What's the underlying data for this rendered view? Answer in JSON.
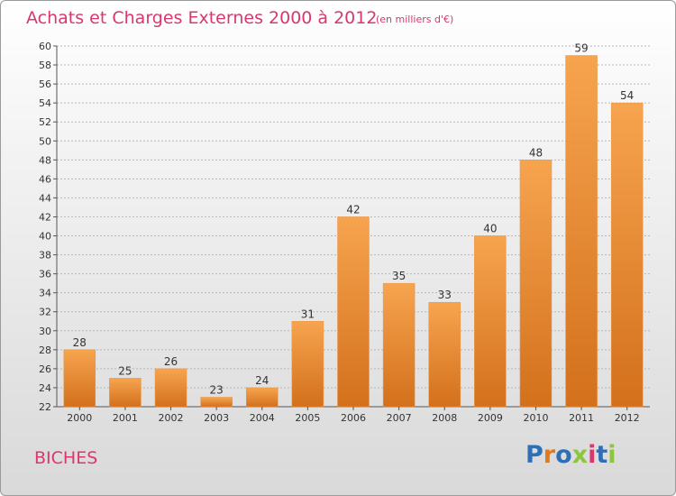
{
  "title": "Achats et Charges Externes 2000 à 2012",
  "subtitle": "(en milliers d'€)",
  "commune": "BICHES",
  "logo": {
    "text": "Proxiti",
    "letters": [
      {
        "char": "P",
        "color": "#2e6fb5"
      },
      {
        "char": "r",
        "color": "#e07a1c"
      },
      {
        "char": "o",
        "color": "#2e6fb5"
      },
      {
        "char": "x",
        "color": "#8cc63f"
      },
      {
        "char": "i",
        "color": "#d8386b"
      },
      {
        "char": "t",
        "color": "#2e6fb5"
      },
      {
        "char": "i",
        "color": "#8cc63f"
      }
    ]
  },
  "colors": {
    "bar_light": "#f7a44f",
    "bar_dark": "#d3701c",
    "title": "#d8386b",
    "grid": "#b8b8b8"
  },
  "chart_data": {
    "type": "bar",
    "categories": [
      "2000",
      "2001",
      "2002",
      "2003",
      "2004",
      "2005",
      "2006",
      "2007",
      "2008",
      "2009",
      "2010",
      "2011",
      "2012"
    ],
    "values": [
      28,
      25,
      26,
      23,
      24,
      31,
      42,
      35,
      33,
      40,
      48,
      59,
      54
    ],
    "ylim": [
      22,
      60
    ],
    "yticks": [
      22,
      24,
      26,
      28,
      30,
      32,
      34,
      36,
      38,
      40,
      42,
      44,
      46,
      48,
      50,
      52,
      54,
      56,
      58,
      60
    ],
    "grid": true,
    "data_labels": true
  }
}
